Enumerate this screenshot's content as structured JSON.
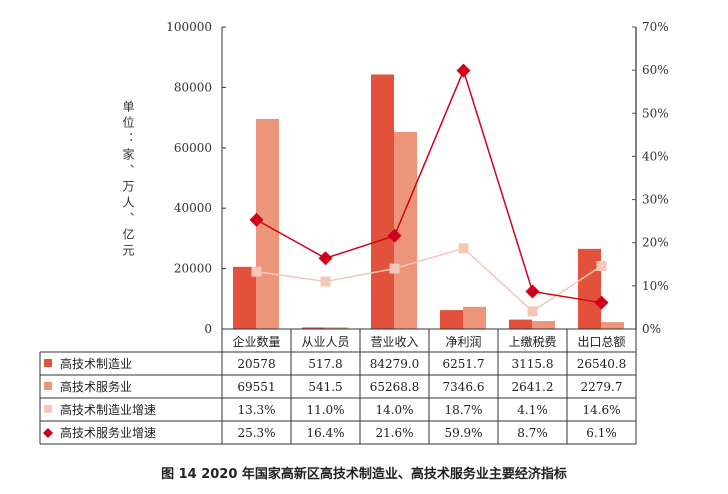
{
  "chart_data": {
    "type": "bar",
    "title": "图 14   2020 年国家高新区高技术制造业、高技术服务业主要经济指标",
    "ylabel": "单位：家、万人、亿元",
    "ylim": [
      0,
      100000
    ],
    "y2lim": [
      0,
      0.7
    ],
    "yticks": [
      "0",
      "20000",
      "40000",
      "60000",
      "80000",
      "100000"
    ],
    "y2ticks": [
      "0%",
      "10%",
      "20%",
      "30%",
      "40%",
      "50%",
      "60%",
      "70%"
    ],
    "categories": [
      "企业数量",
      "从业人员",
      "营业收入",
      "净利润",
      "上缴税费",
      "出口总额"
    ],
    "series": [
      {
        "name": "高技术制造业",
        "kind": "bar",
        "color": "#e2513b",
        "values": [
          20578,
          517.8,
          84279.0,
          6251.7,
          3115.8,
          26540.8
        ],
        "labels": [
          "20578",
          "517.8",
          "84279.0",
          "6251.7",
          "3115.8",
          "26540.8"
        ]
      },
      {
        "name": "高技术服务业",
        "kind": "bar",
        "color": "#ec957a",
        "values": [
          69551,
          541.5,
          65268.8,
          7346.6,
          2641.2,
          2279.7
        ],
        "labels": [
          "69551",
          "541.5",
          "65268.8",
          "7346.6",
          "2641.2",
          "2279.7"
        ]
      },
      {
        "name": "高技术制造业增速",
        "kind": "line",
        "marker": "square",
        "color": "#f4c7b8",
        "values": [
          0.133,
          0.11,
          0.14,
          0.187,
          0.041,
          0.146
        ],
        "labels": [
          "13.3%",
          "11.0%",
          "14.0%",
          "18.7%",
          "4.1%",
          "14.6%"
        ]
      },
      {
        "name": "高技术服务业增速",
        "kind": "line",
        "marker": "diamond",
        "color": "#d0021b",
        "values": [
          0.253,
          0.164,
          0.216,
          0.599,
          0.087,
          0.061
        ],
        "labels": [
          "25.3%",
          "16.4%",
          "21.6%",
          "59.9%",
          "8.7%",
          "6.1%"
        ]
      }
    ]
  }
}
